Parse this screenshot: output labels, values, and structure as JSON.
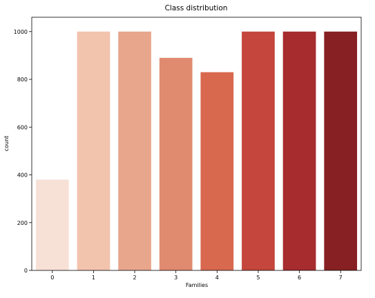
{
  "chart_data": {
    "type": "bar",
    "title": "Class distribution",
    "xlabel": "Families",
    "ylabel": "count",
    "categories": [
      "0",
      "1",
      "2",
      "3",
      "4",
      "5",
      "6",
      "7"
    ],
    "values": [
      380,
      1000,
      1000,
      890,
      830,
      1000,
      1000,
      1000
    ],
    "colors": [
      "#f7e1d7",
      "#f2c3ad",
      "#e8a68d",
      "#e08a70",
      "#d8694f",
      "#c4463c",
      "#a62c2e",
      "#862023"
    ],
    "ylim": [
      0,
      1060
    ],
    "yticks": [
      0,
      200,
      400,
      600,
      800,
      1000
    ],
    "grid": false,
    "legend": false
  }
}
